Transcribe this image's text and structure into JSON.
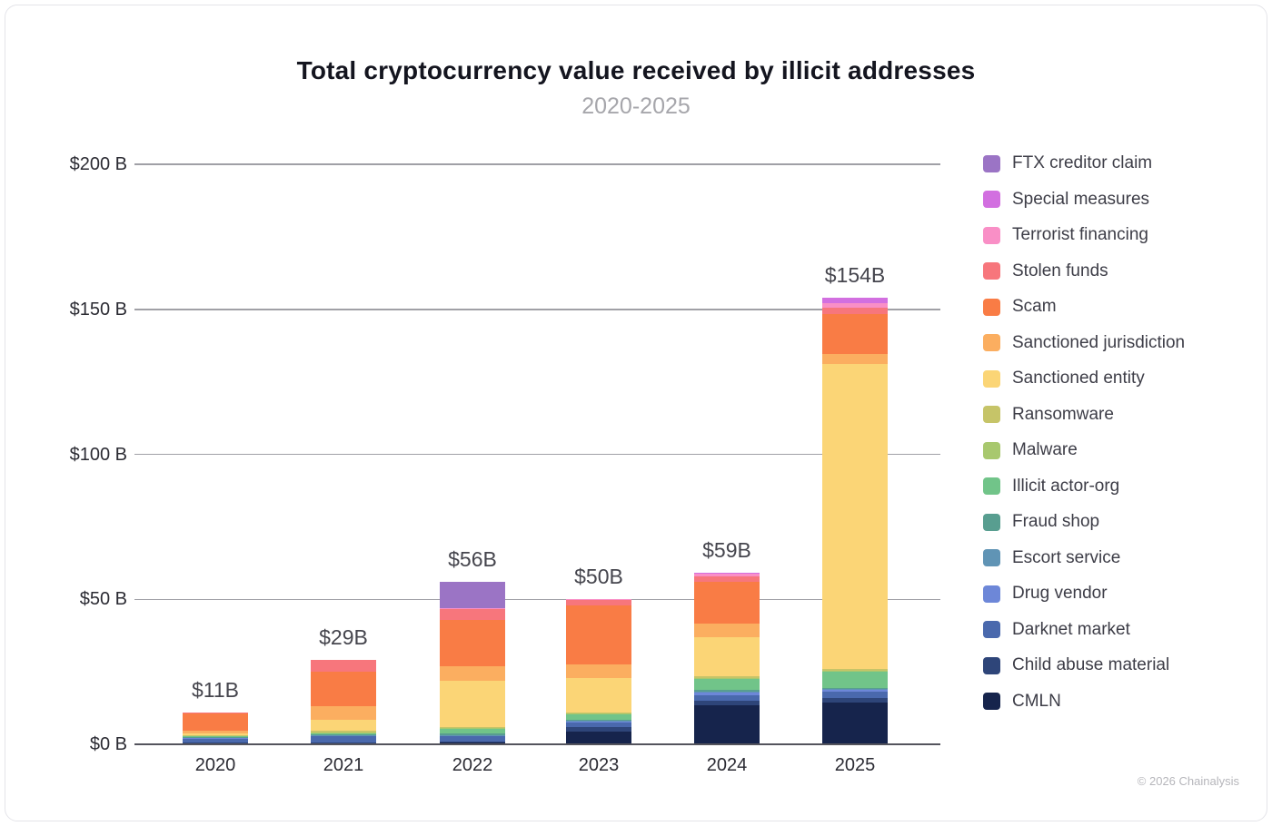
{
  "chart": {
    "title": "Total cryptocurrency value received by illicit addresses",
    "subtitle": "2020-2025"
  },
  "footer": {
    "copyright": "© 2026 Chainalysis"
  },
  "chart_data": {
    "type": "bar",
    "stacked": true,
    "title": "Total cryptocurrency value received by illicit addresses",
    "subtitle": "2020-2025",
    "legend_position": "right",
    "grid": true,
    "categories": [
      "2020",
      "2021",
      "2022",
      "2023",
      "2024",
      "2025"
    ],
    "totals": [
      11,
      29,
      56,
      50,
      59,
      154
    ],
    "total_labels": [
      "$11B",
      "$29B",
      "$56B",
      "$50B",
      "$59B",
      "$154B"
    ],
    "ylim": [
      0,
      200
    ],
    "y_ticks": [
      0,
      50,
      100,
      150,
      200
    ],
    "y_tick_labels": [
      "$0 B",
      "$50 B",
      "$100 B",
      "$150 B",
      "$200 B"
    ],
    "unit": "$B",
    "series": [
      {
        "name": "CMLN",
        "color": "#16244c",
        "values": [
          0.3,
          0.4,
          0.5,
          4.5,
          13.5,
          14.5
        ]
      },
      {
        "name": "Child abuse material",
        "color": "#2e4579",
        "values": [
          0.2,
          0.3,
          0.4,
          1.5,
          1.5,
          1.5
        ]
      },
      {
        "name": "Darknet market",
        "color": "#4a69ad",
        "values": [
          1.5,
          2.0,
          1.8,
          1.5,
          2.0,
          2.0
        ]
      },
      {
        "name": "Drug vendor",
        "color": "#6d87d8",
        "values": [
          0.3,
          0.4,
          0.4,
          0.4,
          1.0,
          0.8
        ]
      },
      {
        "name": "Escort service",
        "color": "#6094b5",
        "values": [
          0.1,
          0.1,
          0.1,
          0.1,
          0.2,
          0.2
        ]
      },
      {
        "name": "Fraud shop",
        "color": "#589e90",
        "values": [
          0.2,
          0.3,
          0.5,
          0.4,
          0.5,
          0.5
        ]
      },
      {
        "name": "Illicit actor-org",
        "color": "#71c489",
        "values": [
          0.3,
          0.5,
          1.5,
          1.8,
          4.0,
          5.5
        ]
      },
      {
        "name": "Malware",
        "color": "#a8c86e",
        "values": [
          0.1,
          0.2,
          0.3,
          0.3,
          0.3,
          0.3
        ]
      },
      {
        "name": "Ransomware",
        "color": "#c6c468",
        "values": [
          0.1,
          0.4,
          0.5,
          0.5,
          0.5,
          0.7
        ]
      },
      {
        "name": "Sanctioned entity",
        "color": "#fbd576",
        "values": [
          0.5,
          4.0,
          16.0,
          12.0,
          13.5,
          105.0
        ]
      },
      {
        "name": "Sanctioned jurisdiction",
        "color": "#fbae60",
        "values": [
          1.0,
          4.4,
          5.0,
          4.5,
          4.5,
          3.5
        ]
      },
      {
        "name": "Scam",
        "color": "#f97c45",
        "values": [
          6.0,
          12.0,
          16.0,
          20.5,
          14.5,
          14.0
        ]
      },
      {
        "name": "Stolen funds",
        "color": "#f7767c",
        "values": [
          0.4,
          4.0,
          3.8,
          1.8,
          2.0,
          2.0
        ]
      },
      {
        "name": "Terrorist financing",
        "color": "#f98fc6",
        "values": [
          0,
          0,
          0.2,
          0.2,
          0.8,
          1.5
        ]
      },
      {
        "name": "Special measures",
        "color": "#d26fe0",
        "values": [
          0,
          0,
          0,
          0,
          0.2,
          2.0
        ]
      },
      {
        "name": "FTX creditor claim",
        "color": "#9b74c5",
        "values": [
          0,
          0,
          9.0,
          0,
          0,
          0
        ]
      }
    ]
  }
}
